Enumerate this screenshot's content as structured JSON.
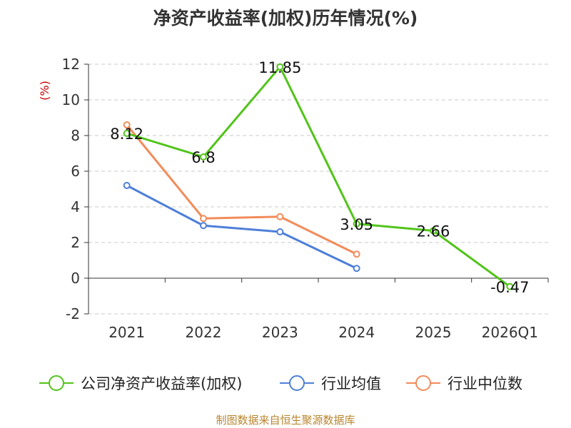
{
  "chart_data": {
    "type": "line",
    "title": "净资产收益率(加权)历年情况(%)",
    "ylabel": "(%)",
    "xlabel": "",
    "categories": [
      "2021",
      "2022",
      "2023",
      "2024",
      "2025",
      "2026Q1"
    ],
    "ylim": [
      -2,
      12
    ],
    "yticks": [
      -2,
      0,
      2,
      4,
      6,
      8,
      10,
      12
    ],
    "grid": true,
    "legend_position": "bottom",
    "series": [
      {
        "name": "公司净资产收益率(加权)",
        "color": "#52c41a",
        "values": [
          8.12,
          6.8,
          11.85,
          3.05,
          2.66,
          -0.47
        ],
        "labels": [
          "8.12",
          "6.8",
          "11.85",
          "3.05",
          "2.66",
          "-0.47"
        ]
      },
      {
        "name": "行业均值",
        "color": "#4e7fd8",
        "values": [
          5.2,
          2.95,
          2.6,
          0.55,
          null,
          null
        ]
      },
      {
        "name": "行业中位数",
        "color": "#f28c5a",
        "values": [
          8.6,
          3.35,
          3.45,
          1.35,
          null,
          null
        ]
      }
    ]
  },
  "footer": {
    "source": "制图数据来自恒生聚源数据库"
  }
}
